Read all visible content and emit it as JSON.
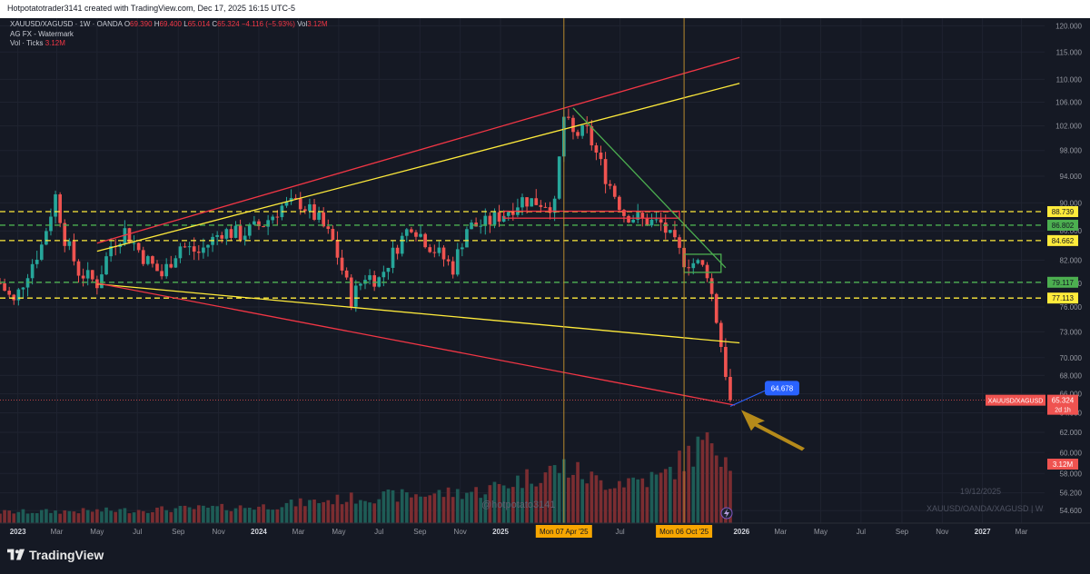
{
  "header": {
    "credit": "Hotpotatotrader3141 created with TradingView.com, Dec 17, 2025 16:15 UTC-5"
  },
  "legend": {
    "symbol": "XAUUSD/XAGUSD · 1W · OANDA",
    "o_label": "O",
    "o": "69.390",
    "h_label": "H",
    "h": "69.400",
    "l_label": "L",
    "l": "65.014",
    "c_label": "C",
    "c": "65.324",
    "change": "−4.116 (−5.93%)",
    "vol_label": "Vol",
    "vol": "3.12M",
    "indicator1": "AG FX - Watermark",
    "indicator2_label": "Vol · Ticks",
    "indicator2": "3.12M"
  },
  "watermark": {
    "handle": "@hotpotato3141",
    "date": "19/12/2025",
    "symbol": "XAUUSD/OANDA/XAGUSD | W"
  },
  "brand": {
    "name": "TradingView"
  },
  "colors": {
    "background": "#151924",
    "up": "#26a69a",
    "down": "#ef5350",
    "channel_red": "#f23645",
    "channel_yellow": "#ffeb3b",
    "level_green": "#4caf50",
    "vertical_line": "#b8892e",
    "arrow": "#b58a1a",
    "callout": "#2962ff"
  },
  "chart_data": {
    "type": "candlestick",
    "title": "XAUUSD/XAGUSD · 1W · OANDA",
    "x_start": "2022-12-05",
    "x_end": "2027-04-05",
    "ylim": [
      53.5,
      121.5
    ],
    "y_ticks": [
      "54.600",
      "56.200",
      "58.000",
      "60.000",
      "62.000",
      "64.000",
      "66.000",
      "68.000",
      "70.000",
      "73.000",
      "76.000",
      "79.000",
      "82.000",
      "86.000",
      "90.000",
      "94.000",
      "98.000",
      "102.000",
      "106.000",
      "110.000",
      "115.000",
      "120.000"
    ],
    "x_ticks": [
      {
        "label": "2023",
        "date": "2023-01-01",
        "bold": true
      },
      {
        "label": "Mar",
        "date": "2023-03-01"
      },
      {
        "label": "May",
        "date": "2023-05-01"
      },
      {
        "label": "Jul",
        "date": "2023-07-01"
      },
      {
        "label": "Sep",
        "date": "2023-09-01"
      },
      {
        "label": "Nov",
        "date": "2023-11-01"
      },
      {
        "label": "2024",
        "date": "2024-01-01",
        "bold": true
      },
      {
        "label": "Mar",
        "date": "2024-03-01"
      },
      {
        "label": "May",
        "date": "2024-05-01"
      },
      {
        "label": "Jul",
        "date": "2024-07-01"
      },
      {
        "label": "Sep",
        "date": "2024-09-01"
      },
      {
        "label": "Nov",
        "date": "2024-11-01"
      },
      {
        "label": "2025",
        "date": "2025-01-01",
        "bold": true
      },
      {
        "label": "Jul",
        "date": "2025-07-01"
      },
      {
        "label": "2026",
        "date": "2026-01-01",
        "bold": true
      },
      {
        "label": "Mar",
        "date": "2026-03-01"
      },
      {
        "label": "May",
        "date": "2026-05-01"
      },
      {
        "label": "Jul",
        "date": "2026-07-01"
      },
      {
        "label": "Sep",
        "date": "2026-09-01"
      },
      {
        "label": "Nov",
        "date": "2026-11-01"
      },
      {
        "label": "2027",
        "date": "2027-01-01",
        "bold": true
      },
      {
        "label": "Mar",
        "date": "2027-03-01"
      }
    ],
    "x_markers": [
      {
        "label": "Mon 07 Apr '25",
        "date": "2025-04-07"
      },
      {
        "label": "Mon 06 Oct '25",
        "date": "2025-10-06"
      }
    ],
    "hlines": [
      {
        "value": 88.739,
        "label": "88.739",
        "color": "#ffeb3b"
      },
      {
        "value": 86.802,
        "label": "86.802",
        "color": "#4caf50"
      },
      {
        "value": 84.662,
        "label": "84.662",
        "color": "#ffeb3b"
      },
      {
        "value": 79.117,
        "label": "79.117",
        "color": "#4caf50"
      },
      {
        "value": 77.113,
        "label": "77.113",
        "color": "#ffeb3b"
      }
    ],
    "last_price": {
      "value": 65.324,
      "label": "65.324",
      "time_left": "2d 1h",
      "symbol": "XAUUSD/XAGUSD"
    },
    "volume_label": "3.12M",
    "callout": {
      "value": "64.678",
      "date": "2025-12-15",
      "price": 64.678
    },
    "trendlines": [
      {
        "name": "red-channel-top",
        "color": "#f23645",
        "from": [
          "2023-05-01",
          84.3
        ],
        "to": [
          "2025-12-29",
          114.0
        ]
      },
      {
        "name": "yellow-channel-top",
        "color": "#ffeb3b",
        "from": [
          "2023-05-01",
          83.2
        ],
        "to": [
          "2025-12-29",
          109.3
        ]
      },
      {
        "name": "yellow-channel-bottom",
        "color": "#ffeb3b",
        "from": [
          "2023-05-01",
          78.9
        ],
        "to": [
          "2025-12-29",
          71.7
        ]
      },
      {
        "name": "red-channel-bottom",
        "color": "#f23645",
        "from": [
          "2023-05-01",
          79.0
        ],
        "to": [
          "2025-12-22",
          64.8
        ]
      },
      {
        "name": "green-downtrend",
        "color": "#4caf50",
        "from": [
          "2025-04-21",
          105.0
        ],
        "to": [
          "2025-12-08",
          81.0
        ]
      }
    ],
    "zones": [
      {
        "name": "red-box",
        "color": "#f23645",
        "from": [
          "2025-01-06",
          88.8
        ],
        "to": [
          "2025-09-29",
          87.8
        ]
      },
      {
        "name": "green-box",
        "color": "#4caf50",
        "from": [
          "2025-10-06",
          82.8
        ],
        "to": [
          "2025-12-01",
          80.4
        ]
      }
    ],
    "waypoints": [
      [
        "2022-12-05",
        79.0
      ],
      [
        "2022-12-26",
        76.5
      ],
      [
        "2023-01-16",
        80.5
      ],
      [
        "2023-02-06",
        84.0
      ],
      [
        "2023-02-27",
        91.0
      ],
      [
        "2023-03-13",
        85.0
      ],
      [
        "2023-04-03",
        80.5
      ],
      [
        "2023-05-01",
        79.0
      ],
      [
        "2023-05-22",
        84.0
      ],
      [
        "2023-06-12",
        86.0
      ],
      [
        "2023-07-10",
        82.5
      ],
      [
        "2023-08-07",
        80.0
      ],
      [
        "2023-09-04",
        84.0
      ],
      [
        "2023-10-02",
        83.0
      ],
      [
        "2023-11-06",
        86.0
      ],
      [
        "2023-12-04",
        85.5
      ],
      [
        "2024-01-08",
        87.0
      ],
      [
        "2024-02-05",
        89.5
      ],
      [
        "2024-03-04",
        90.0
      ],
      [
        "2024-04-01",
        87.5
      ],
      [
        "2024-04-22",
        84.5
      ],
      [
        "2024-05-20",
        77.0
      ],
      [
        "2024-06-10",
        80.0
      ],
      [
        "2024-07-01",
        79.5
      ],
      [
        "2024-07-29",
        84.0
      ],
      [
        "2024-08-19",
        87.0
      ],
      [
        "2024-09-16",
        84.0
      ],
      [
        "2024-10-21",
        81.0
      ],
      [
        "2024-11-11",
        86.5
      ],
      [
        "2024-12-09",
        87.0
      ],
      [
        "2025-01-06",
        88.5
      ],
      [
        "2025-02-03",
        90.5
      ],
      [
        "2025-03-10",
        90.0
      ],
      [
        "2025-03-24",
        89.5
      ],
      [
        "2025-04-07",
        103.5
      ],
      [
        "2025-04-21",
        100.5
      ],
      [
        "2025-05-12",
        101.0
      ],
      [
        "2025-06-09",
        94.0
      ],
      [
        "2025-07-07",
        88.5
      ],
      [
        "2025-08-04",
        87.5
      ],
      [
        "2025-09-01",
        87.0
      ],
      [
        "2025-10-06",
        82.0
      ],
      [
        "2025-10-27",
        81.5
      ],
      [
        "2025-11-10",
        80.5
      ],
      [
        "2025-11-24",
        74.5
      ],
      [
        "2025-12-15",
        65.3
      ]
    ],
    "volume_waypoints": [
      [
        "2022-12-05",
        0.12
      ],
      [
        "2023-06-01",
        0.14
      ],
      [
        "2024-01-01",
        0.18
      ],
      [
        "2024-06-01",
        0.28
      ],
      [
        "2024-12-01",
        0.35
      ],
      [
        "2025-04-07",
        0.62
      ],
      [
        "2025-06-01",
        0.45
      ],
      [
        "2025-09-01",
        0.5
      ],
      [
        "2025-10-20",
        0.78
      ],
      [
        "2025-11-17",
        0.95
      ],
      [
        "2025-12-15",
        0.7
      ]
    ]
  }
}
